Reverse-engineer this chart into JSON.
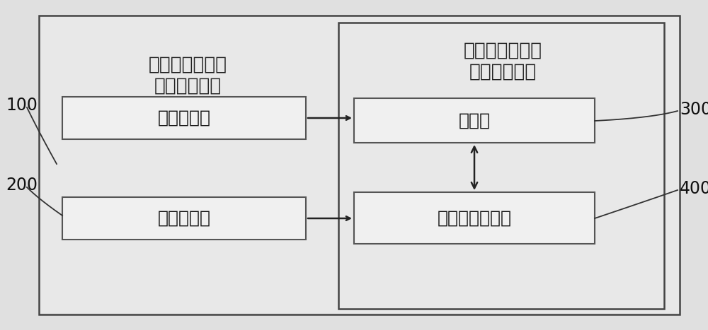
{
  "bg_color": "#f0f0f0",
  "outer_bg": "#e8e8e8",
  "box_bg": "#f5f5f5",
  "outer_box_color": "#555555",
  "inner_box_color": "#555555",
  "label_100": "100",
  "label_200": "200",
  "label_300": "300",
  "label_400": "400",
  "device_title_line1": "脑电双频谱监测",
  "device_title_line2": "信号采集装置",
  "system_title_line1": "脑电双频谱监测",
  "system_title_line2": "信号采集系统",
  "sensor1_label": "第一传感器",
  "sensor2_label": "第二传感器",
  "controller_label": "控制器",
  "processor_label": "第一数据处理器",
  "font_size_title": 19,
  "font_size_box": 18,
  "font_size_label": 17
}
